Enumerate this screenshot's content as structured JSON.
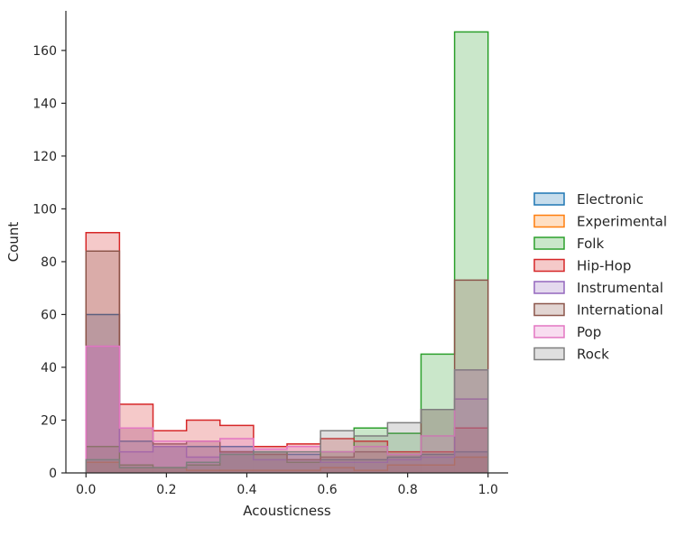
{
  "chart_data": {
    "type": "histogram",
    "element": "step",
    "fill": true,
    "xlabel": "Acousticness",
    "ylabel": "Count",
    "xlim": [
      -0.05,
      1.05
    ],
    "ylim": [
      0,
      175
    ],
    "xticks": [
      0.0,
      0.2,
      0.4,
      0.6,
      0.8,
      1.0
    ],
    "xtick_labels": [
      "0.0",
      "0.2",
      "0.4",
      "0.6",
      "0.8",
      "1.0"
    ],
    "yticks": [
      0,
      20,
      40,
      60,
      80,
      100,
      120,
      140,
      160
    ],
    "ytick_labels": [
      "0",
      "20",
      "40",
      "60",
      "80",
      "100",
      "120",
      "140",
      "160"
    ],
    "bin_edges": [
      0.0,
      0.0833,
      0.1667,
      0.25,
      0.3333,
      0.4167,
      0.5,
      0.5833,
      0.6667,
      0.75,
      0.8333,
      0.9167,
      1.0
    ],
    "legend_position": "center-right",
    "series": [
      {
        "name": "Electronic",
        "color": "#1f77b4",
        "values": [
          60,
          12,
          10,
          10,
          10,
          8,
          7,
          5,
          5,
          6,
          7,
          8
        ]
      },
      {
        "name": "Experimental",
        "color": "#ff7f0e",
        "values": [
          4,
          2,
          2,
          1,
          1,
          1,
          1,
          2,
          1,
          3,
          3,
          6
        ]
      },
      {
        "name": "Folk",
        "color": "#2ca02c",
        "values": [
          10,
          3,
          2,
          3,
          8,
          8,
          4,
          8,
          17,
          15,
          45,
          167
        ]
      },
      {
        "name": "Hip-Hop",
        "color": "#d62728",
        "values": [
          91,
          26,
          16,
          20,
          18,
          10,
          11,
          13,
          12,
          8,
          8,
          17
        ]
      },
      {
        "name": "Instrumental",
        "color": "#9467bd",
        "values": [
          48,
          8,
          10,
          6,
          8,
          5,
          5,
          4,
          4,
          5,
          6,
          28
        ]
      },
      {
        "name": "International",
        "color": "#8c564b",
        "values": [
          84,
          17,
          11,
          12,
          8,
          7,
          5,
          6,
          8,
          7,
          24,
          73
        ]
      },
      {
        "name": "Pop",
        "color": "#e377c2",
        "values": [
          48,
          17,
          12,
          12,
          13,
          9,
          10,
          8,
          10,
          7,
          14,
          39
        ]
      },
      {
        "name": "Rock",
        "color": "#7f7f7f",
        "values": [
          5,
          2,
          2,
          4,
          7,
          8,
          8,
          16,
          14,
          19,
          24,
          39
        ]
      }
    ]
  }
}
